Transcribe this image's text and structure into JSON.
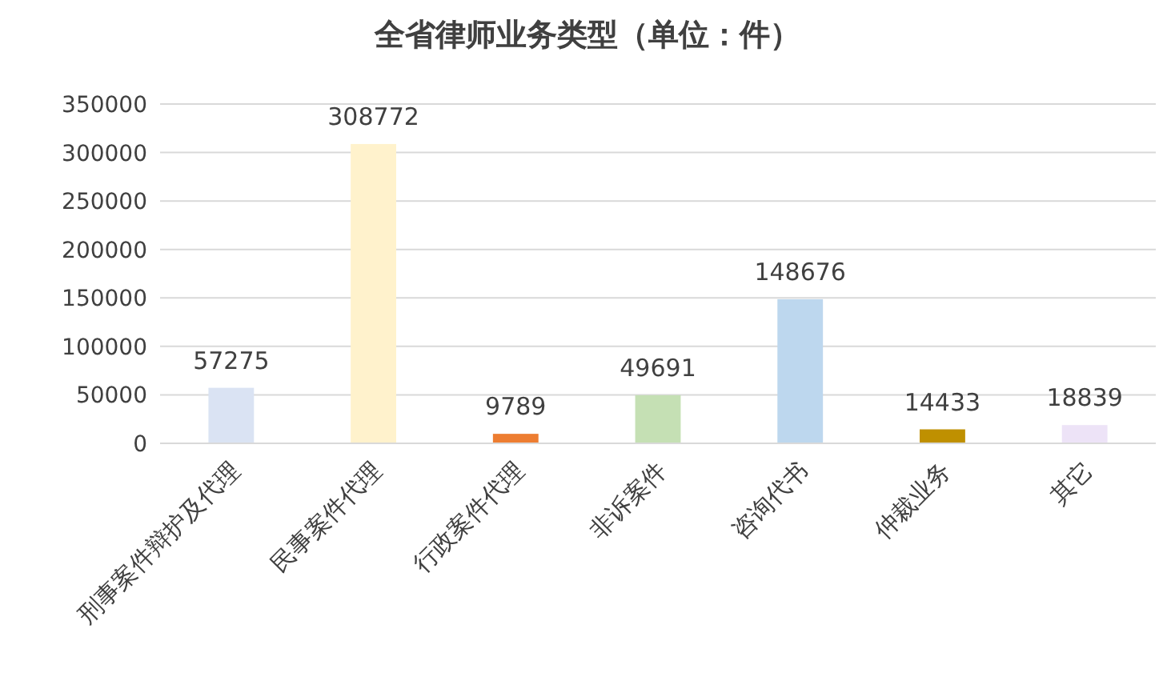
{
  "chart_data": {
    "type": "bar",
    "title": "全省律师业务类型（单位：件）",
    "categories": [
      "刑事案件辩护及代理",
      "民事案件代理",
      "行政案件代理",
      "非诉案件",
      "咨询代书",
      "仲裁业务",
      "其它"
    ],
    "values": [
      57275,
      308772,
      9789,
      49691,
      148676,
      14433,
      18839
    ],
    "colors": [
      "#dae3f3",
      "#fff2cc",
      "#ed7d31",
      "#c5e0b4",
      "#bdd7ee",
      "#bf9000",
      "#ede3f7"
    ],
    "ylim": [
      0,
      350000
    ],
    "yticks": [
      0,
      50000,
      100000,
      150000,
      200000,
      250000,
      300000,
      350000
    ],
    "grid": "y",
    "data_labels": true
  }
}
